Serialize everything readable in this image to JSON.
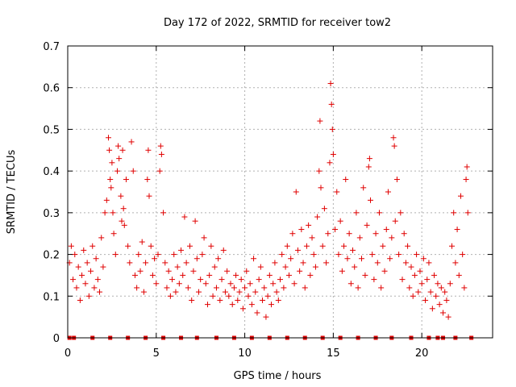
{
  "chart_data": {
    "type": "scatter",
    "title": "Day 172 of 2022, SRMTID for receiver tow2",
    "xlabel": "GPS time / hours",
    "ylabel": "SRMTID / TECUs",
    "xlim": [
      0,
      24
    ],
    "ylim": [
      0,
      0.7
    ],
    "x_ticks": [
      {
        "value": 0,
        "label": "0"
      },
      {
        "value": 5,
        "label": "5"
      },
      {
        "value": 10,
        "label": "10"
      },
      {
        "value": 15,
        "label": "15"
      },
      {
        "value": 20,
        "label": "20"
      }
    ],
    "y_ticks": [
      {
        "value": 0,
        "label": "0"
      },
      {
        "value": 0.1,
        "label": "0.1"
      },
      {
        "value": 0.2,
        "label": "0.2"
      },
      {
        "value": 0.3,
        "label": "0.3"
      },
      {
        "value": 0.4,
        "label": "0.4"
      },
      {
        "value": 0.5,
        "label": "0.5"
      },
      {
        "value": 0.6,
        "label": "0.6"
      },
      {
        "value": 0.7,
        "label": "0.7"
      }
    ],
    "grid": true,
    "marker_color": "#e00000",
    "series": [
      {
        "name": "SRMTID",
        "points": [
          [
            0.1,
            0.18
          ],
          [
            0.2,
            0.22
          ],
          [
            0.3,
            0.14
          ],
          [
            0.4,
            0.2
          ],
          [
            0.5,
            0.12
          ],
          [
            0.6,
            0.17
          ],
          [
            0.7,
            0.09
          ],
          [
            0.8,
            0.15
          ],
          [
            0.9,
            0.21
          ],
          [
            1.0,
            0.13
          ],
          [
            1.1,
            0.18
          ],
          [
            1.2,
            0.1
          ],
          [
            1.3,
            0.16
          ],
          [
            1.4,
            0.22
          ],
          [
            1.5,
            0.12
          ],
          [
            1.6,
            0.19
          ],
          [
            1.7,
            0.14
          ],
          [
            1.8,
            0.11
          ],
          [
            1.9,
            0.24
          ],
          [
            2.0,
            0.17
          ],
          [
            2.1,
            0.3
          ],
          [
            2.2,
            0.33
          ],
          [
            2.3,
            0.48
          ],
          [
            2.35,
            0.45
          ],
          [
            2.4,
            0.38
          ],
          [
            2.45,
            0.36
          ],
          [
            2.5,
            0.42
          ],
          [
            2.55,
            0.3
          ],
          [
            2.6,
            0.25
          ],
          [
            2.7,
            0.2
          ],
          [
            2.8,
            0.4
          ],
          [
            2.85,
            0.46
          ],
          [
            2.9,
            0.43
          ],
          [
            3.0,
            0.34
          ],
          [
            3.05,
            0.28
          ],
          [
            3.1,
            0.45
          ],
          [
            3.15,
            0.31
          ],
          [
            3.2,
            0.27
          ],
          [
            3.3,
            0.38
          ],
          [
            3.4,
            0.22
          ],
          [
            3.5,
            0.18
          ],
          [
            3.6,
            0.47
          ],
          [
            3.7,
            0.4
          ],
          [
            3.8,
            0.15
          ],
          [
            3.9,
            0.12
          ],
          [
            4.0,
            0.2
          ],
          [
            4.1,
            0.16
          ],
          [
            4.2,
            0.23
          ],
          [
            4.3,
            0.11
          ],
          [
            4.4,
            0.18
          ],
          [
            4.5,
            0.38
          ],
          [
            4.55,
            0.45
          ],
          [
            4.6,
            0.34
          ],
          [
            4.7,
            0.22
          ],
          [
            4.8,
            0.15
          ],
          [
            4.9,
            0.19
          ],
          [
            5.0,
            0.13
          ],
          [
            5.1,
            0.2
          ],
          [
            5.2,
            0.4
          ],
          [
            5.25,
            0.46
          ],
          [
            5.3,
            0.44
          ],
          [
            5.4,
            0.3
          ],
          [
            5.5,
            0.18
          ],
          [
            5.6,
            0.12
          ],
          [
            5.7,
            0.16
          ],
          [
            5.8,
            0.1
          ],
          [
            5.9,
            0.14
          ],
          [
            6.0,
            0.2
          ],
          [
            6.1,
            0.11
          ],
          [
            6.2,
            0.17
          ],
          [
            6.3,
            0.13
          ],
          [
            6.4,
            0.21
          ],
          [
            6.5,
            0.15
          ],
          [
            6.6,
            0.29
          ],
          [
            6.7,
            0.18
          ],
          [
            6.8,
            0.12
          ],
          [
            6.9,
            0.22
          ],
          [
            7.0,
            0.09
          ],
          [
            7.1,
            0.16
          ],
          [
            7.2,
            0.28
          ],
          [
            7.3,
            0.19
          ],
          [
            7.4,
            0.11
          ],
          [
            7.5,
            0.14
          ],
          [
            7.6,
            0.2
          ],
          [
            7.7,
            0.24
          ],
          [
            7.8,
            0.13
          ],
          [
            7.9,
            0.08
          ],
          [
            8.0,
            0.15
          ],
          [
            8.1,
            0.22
          ],
          [
            8.2,
            0.1
          ],
          [
            8.3,
            0.17
          ],
          [
            8.4,
            0.12
          ],
          [
            8.5,
            0.19
          ],
          [
            8.6,
            0.09
          ],
          [
            8.7,
            0.14
          ],
          [
            8.8,
            0.21
          ],
          [
            8.9,
            0.11
          ],
          [
            9.0,
            0.16
          ],
          [
            9.1,
            0.1
          ],
          [
            9.2,
            0.13
          ],
          [
            9.3,
            0.08
          ],
          [
            9.4,
            0.12
          ],
          [
            9.5,
            0.15
          ],
          [
            9.6,
            0.09
          ],
          [
            9.7,
            0.11
          ],
          [
            9.8,
            0.14
          ],
          [
            9.9,
            0.07
          ],
          [
            10.0,
            0.12
          ],
          [
            10.1,
            0.16
          ],
          [
            10.2,
            0.1
          ],
          [
            10.3,
            0.13
          ],
          [
            10.4,
            0.08
          ],
          [
            10.5,
            0.19
          ],
          [
            10.6,
            0.11
          ],
          [
            10.7,
            0.06
          ],
          [
            10.8,
            0.14
          ],
          [
            10.9,
            0.17
          ],
          [
            11.0,
            0.09
          ],
          [
            11.1,
            0.12
          ],
          [
            11.2,
            0.05
          ],
          [
            11.3,
            0.1
          ],
          [
            11.4,
            0.15
          ],
          [
            11.5,
            0.08
          ],
          [
            11.6,
            0.13
          ],
          [
            11.7,
            0.18
          ],
          [
            11.8,
            0.11
          ],
          [
            11.9,
            0.09
          ],
          [
            12.0,
            0.14
          ],
          [
            12.1,
            0.2
          ],
          [
            12.2,
            0.12
          ],
          [
            12.3,
            0.17
          ],
          [
            12.4,
            0.22
          ],
          [
            12.5,
            0.15
          ],
          [
            12.6,
            0.19
          ],
          [
            12.7,
            0.25
          ],
          [
            12.8,
            0.13
          ],
          [
            12.9,
            0.35
          ],
          [
            13.0,
            0.21
          ],
          [
            13.1,
            0.16
          ],
          [
            13.2,
            0.26
          ],
          [
            13.3,
            0.18
          ],
          [
            13.4,
            0.12
          ],
          [
            13.5,
            0.22
          ],
          [
            13.6,
            0.27
          ],
          [
            13.7,
            0.15
          ],
          [
            13.8,
            0.24
          ],
          [
            13.9,
            0.2
          ],
          [
            14.0,
            0.17
          ],
          [
            14.1,
            0.29
          ],
          [
            14.2,
            0.4
          ],
          [
            14.25,
            0.52
          ],
          [
            14.3,
            0.36
          ],
          [
            14.4,
            0.22
          ],
          [
            14.5,
            0.31
          ],
          [
            14.6,
            0.18
          ],
          [
            14.7,
            0.25
          ],
          [
            14.8,
            0.42
          ],
          [
            14.85,
            0.61
          ],
          [
            14.9,
            0.56
          ],
          [
            14.95,
            0.5
          ],
          [
            15.0,
            0.44
          ],
          [
            15.1,
            0.26
          ],
          [
            15.2,
            0.35
          ],
          [
            15.3,
            0.2
          ],
          [
            15.4,
            0.28
          ],
          [
            15.5,
            0.16
          ],
          [
            15.6,
            0.22
          ],
          [
            15.7,
            0.38
          ],
          [
            15.8,
            0.19
          ],
          [
            15.9,
            0.25
          ],
          [
            16.0,
            0.13
          ],
          [
            16.1,
            0.21
          ],
          [
            16.2,
            0.17
          ],
          [
            16.3,
            0.3
          ],
          [
            16.4,
            0.12
          ],
          [
            16.5,
            0.24
          ],
          [
            16.6,
            0.19
          ],
          [
            16.7,
            0.36
          ],
          [
            16.8,
            0.15
          ],
          [
            16.9,
            0.27
          ],
          [
            17.0,
            0.41
          ],
          [
            17.05,
            0.43
          ],
          [
            17.1,
            0.33
          ],
          [
            17.2,
            0.2
          ],
          [
            17.3,
            0.14
          ],
          [
            17.4,
            0.25
          ],
          [
            17.5,
            0.18
          ],
          [
            17.6,
            0.3
          ],
          [
            17.7,
            0.12
          ],
          [
            17.8,
            0.22
          ],
          [
            17.9,
            0.16
          ],
          [
            18.0,
            0.26
          ],
          [
            18.1,
            0.35
          ],
          [
            18.2,
            0.19
          ],
          [
            18.3,
            0.24
          ],
          [
            18.4,
            0.48
          ],
          [
            18.45,
            0.46
          ],
          [
            18.5,
            0.28
          ],
          [
            18.6,
            0.38
          ],
          [
            18.7,
            0.2
          ],
          [
            18.8,
            0.3
          ],
          [
            18.9,
            0.14
          ],
          [
            19.0,
            0.25
          ],
          [
            19.1,
            0.18
          ],
          [
            19.2,
            0.22
          ],
          [
            19.3,
            0.12
          ],
          [
            19.4,
            0.17
          ],
          [
            19.5,
            0.1
          ],
          [
            19.6,
            0.15
          ],
          [
            19.7,
            0.2
          ],
          [
            19.8,
            0.11
          ],
          [
            19.9,
            0.16
          ],
          [
            20.0,
            0.13
          ],
          [
            20.1,
            0.19
          ],
          [
            20.2,
            0.09
          ],
          [
            20.3,
            0.14
          ],
          [
            20.4,
            0.18
          ],
          [
            20.5,
            0.11
          ],
          [
            20.6,
            0.07
          ],
          [
            20.7,
            0.15
          ],
          [
            20.8,
            0.1
          ],
          [
            20.9,
            0.13
          ],
          [
            21.0,
            0.08
          ],
          [
            21.1,
            0.12
          ],
          [
            21.2,
            0.06
          ],
          [
            21.3,
            0.11
          ],
          [
            21.4,
            0.09
          ],
          [
            21.5,
            0.05
          ],
          [
            21.6,
            0.13
          ],
          [
            21.7,
            0.22
          ],
          [
            21.8,
            0.3
          ],
          [
            21.9,
            0.18
          ],
          [
            22.0,
            0.26
          ],
          [
            22.1,
            0.15
          ],
          [
            22.2,
            0.34
          ],
          [
            22.3,
            0.2
          ],
          [
            22.4,
            0.12
          ],
          [
            22.5,
            0.38
          ],
          [
            22.55,
            0.41
          ],
          [
            22.6,
            0.3
          ]
        ]
      }
    ],
    "baseline_marks_x": [
      0.1,
      0.35,
      1.4,
      2.4,
      3.4,
      4.4,
      5.4,
      6.4,
      7.3,
      8.4,
      9.4,
      10.4,
      11.4,
      12.4,
      13.4,
      14.4,
      15.4,
      16.4,
      17.4,
      18.3,
      19.4,
      20.4,
      20.9,
      21.2,
      21.9,
      22.8
    ]
  }
}
